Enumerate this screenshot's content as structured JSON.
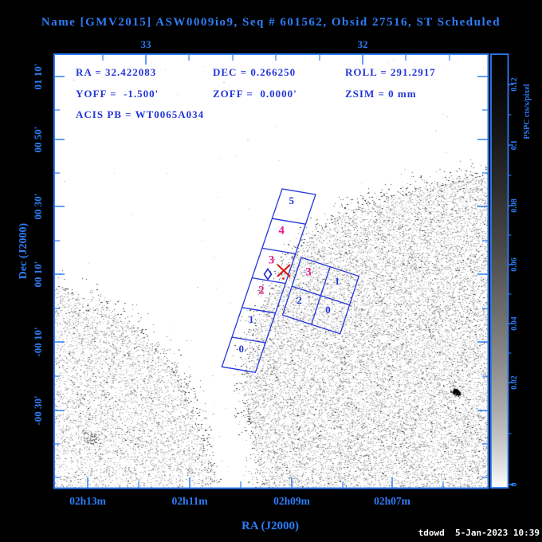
{
  "window": {
    "title": "Name [GMV2015] ASW0009io9, Seq # 601562, Obsid 27516, ST Scheduled",
    "timestamp": "tdowd  5-Jan-2023 10:39"
  },
  "info": {
    "ra": "RA = 32.422083",
    "dec": "DEC = 0.266250",
    "roll": "ROLL = 291.2917",
    "yoff": "YOFF =  -1.500'",
    "zoff": "ZOFF =  0.0000'",
    "zsim": "ZSIM = 0 mm",
    "acis_pb": "ACIS PB = WT0065A034"
  },
  "axes": {
    "x_title": "RA (J2000)",
    "y_title": "Dec (J2000)",
    "top_labels": [
      "33",
      "32"
    ],
    "bottom_labels": [
      "02h13m",
      "02h11m",
      "02h09m",
      "02h07m"
    ],
    "left_labels": [
      "01 10'",
      "00 50'",
      "00 30'",
      "00 10'",
      "-00 10'",
      "-00 30'"
    ]
  },
  "colorbar": {
    "title": "PSPC cts/s/pixel",
    "labels": [
      "0.12",
      "0.1",
      "0.08",
      "0.06",
      "0.04",
      "0.02",
      "0"
    ]
  },
  "fov": {
    "acis_s": {
      "name": "ACIS-S",
      "chips": [
        {
          "label": "5",
          "active": false
        },
        {
          "label": "4",
          "active": true
        },
        {
          "label": "3",
          "active": true
        },
        {
          "label": "2",
          "active": true
        },
        {
          "label": "1",
          "active": false
        },
        {
          "label": "0",
          "active": false
        }
      ]
    },
    "acis_i": {
      "name": "ACIS-I",
      "chips": [
        {
          "label": "3",
          "active": true
        },
        {
          "label": "1",
          "active": false
        },
        {
          "label": "2",
          "active": false
        },
        {
          "label": "0",
          "active": false
        }
      ]
    }
  },
  "colors": {
    "ui_blue": "#2e7df6",
    "fov_blue": "#2336d9",
    "magenta": "#e8188c",
    "marker_red": "#dd1111",
    "diamond_blue": "#1122cc",
    "stamp_white": "#ffffff"
  }
}
